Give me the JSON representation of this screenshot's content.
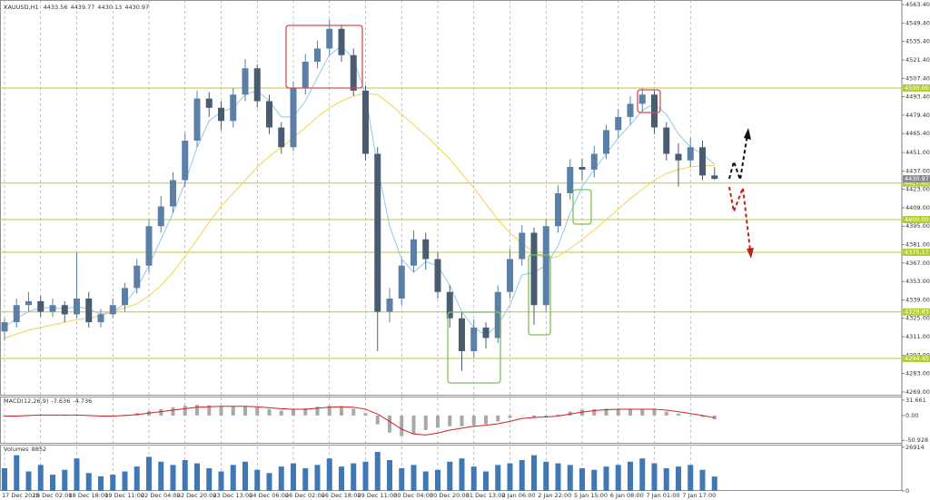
{
  "chart_data": [
    {
      "type": "candlestick",
      "title": "XAUUSD,H1",
      "categories": [
        "17 Dec 2025",
        null,
        null,
        "18 Dec 02:00",
        null,
        null,
        "18 Dec 18:00",
        null,
        null,
        "19 Dec 11:00",
        null,
        null,
        "22 Dec 04:00",
        null,
        null,
        "22 Dec 20:00",
        null,
        null,
        "23 Dec 13:00",
        null,
        null,
        "24 Dec 06:00",
        null,
        null,
        "26 Dec 02:00",
        null,
        null,
        "26 Dec 18:00",
        null,
        null,
        "29 Dec 11:00",
        null,
        null,
        "30 Dec 04:00",
        null,
        null,
        "30 Dec 20:00",
        null,
        null,
        "31 Dec 13:00",
        null,
        null,
        "2 Jan 06:00",
        null,
        null,
        "2 Jan 22:00",
        null,
        null,
        "5 Jan 15:00",
        null,
        null,
        "6 Jan 08:00",
        null,
        null,
        "7 Jan 01:00",
        null,
        null,
        "7 Jan 17:00",
        null,
        null
      ],
      "open": [
        4315,
        4322,
        4335,
        4338,
        4330,
        4335,
        4328,
        4340,
        4322,
        4328,
        4335,
        4348,
        4365,
        4395,
        4410,
        4430,
        4460,
        4492,
        4485,
        4475,
        4495,
        4515,
        4490,
        4470,
        4455,
        4500,
        4520,
        4530,
        4545,
        4525,
        4498,
        4450,
        4330,
        4340,
        4365,
        4385,
        4370,
        4345,
        4325,
        4300,
        4318,
        4310,
        4345,
        4370,
        4390,
        4335,
        4395,
        4420,
        4440,
        4438,
        4450,
        4468,
        4478,
        4488,
        4495,
        4470,
        4450,
        4445,
        4455,
        4433.56
      ],
      "high": [
        4325,
        4340,
        4345,
        4342,
        4340,
        4338,
        4375,
        4345,
        4332,
        4340,
        4352,
        4370,
        4400,
        4418,
        4436,
        4466,
        4498,
        4497,
        4490,
        4500,
        4522,
        4518,
        4495,
        4474,
        4505,
        4526,
        4536,
        4552,
        4548,
        4530,
        4502,
        4455,
        4348,
        4370,
        4392,
        4390,
        4375,
        4350,
        4330,
        4324,
        4322,
        4350,
        4378,
        4396,
        4394,
        4400,
        4426,
        4446,
        4446,
        4456,
        4472,
        4484,
        4494,
        4500,
        4498,
        4474,
        4458,
        4462,
        4460,
        4439.77
      ],
      "low": [
        4308,
        4318,
        4330,
        4326,
        4326,
        4322,
        4325,
        4318,
        4318,
        4325,
        4330,
        4344,
        4360,
        4390,
        4405,
        4425,
        4455,
        4478,
        4468,
        4470,
        4490,
        4485,
        4465,
        4450,
        4452,
        4495,
        4515,
        4525,
        4520,
        4494,
        4445,
        4300,
        4322,
        4335,
        4360,
        4362,
        4340,
        4318,
        4285,
        4295,
        4302,
        4306,
        4340,
        4365,
        4320,
        4330,
        4390,
        4415,
        4430,
        4432,
        4446,
        4462,
        4472,
        4482,
        4465,
        4445,
        4425,
        4440,
        4430,
        4430.13
      ],
      "close": [
        4322,
        4335,
        4338,
        4330,
        4335,
        4328,
        4340,
        4322,
        4328,
        4335,
        4348,
        4365,
        4395,
        4410,
        4430,
        4460,
        4492,
        4485,
        4475,
        4495,
        4515,
        4490,
        4470,
        4455,
        4500,
        4520,
        4530,
        4545,
        4525,
        4498,
        4450,
        4330,
        4340,
        4365,
        4385,
        4370,
        4345,
        4325,
        4300,
        4318,
        4310,
        4345,
        4370,
        4390,
        4335,
        4395,
        4420,
        4440,
        4438,
        4450,
        4468,
        4478,
        4488,
        4495,
        4470,
        4450,
        4445,
        4455,
        4433.56,
        4430.97
      ],
      "up_color": "#5b7fa6",
      "down_color": "#4a5c70",
      "moving_averages": [
        {
          "color": "#8ec9e8",
          "values": [
            4318,
            4325,
            4330,
            4333,
            4333,
            4332,
            4334,
            4332,
            4328,
            4330,
            4336,
            4348,
            4365,
            4385,
            4405,
            4428,
            4455,
            4475,
            4482,
            4485,
            4495,
            4498,
            4490,
            4478,
            4478,
            4490,
            4508,
            4525,
            4532,
            4522,
            4495,
            4440,
            4395,
            4370,
            4360,
            4368,
            4365,
            4350,
            4330,
            4318,
            4312,
            4320,
            4335,
            4358,
            4360,
            4365,
            4380,
            4405,
            4425,
            4438,
            4450,
            4462,
            4472,
            4483,
            4488,
            4480,
            4465,
            4455,
            4450,
            4442
          ]
        },
        {
          "color": "#f3d34a",
          "values": [
            4310,
            4313,
            4316,
            4318,
            4320,
            4322,
            4324,
            4325,
            4327,
            4330,
            4333,
            4336,
            4342,
            4350,
            4360,
            4372,
            4385,
            4398,
            4410,
            4420,
            4430,
            4440,
            4448,
            4455,
            4462,
            4470,
            4478,
            4485,
            4490,
            4494,
            4496,
            4495,
            4488,
            4480,
            4472,
            4464,
            4455,
            4446,
            4435,
            4424,
            4412,
            4400,
            4390,
            4382,
            4375,
            4370,
            4372,
            4378,
            4385,
            4392,
            4400,
            4408,
            4416,
            4423,
            4430,
            4435,
            4438,
            4440,
            4441,
            4441
          ]
        }
      ],
      "levels": [
        {
          "value": 4500,
          "label": "4500.00"
        },
        {
          "value": 4427.8,
          "label": "4427.80"
        },
        {
          "value": 4400,
          "label": "4400.00"
        },
        {
          "value": 4375.17,
          "label": "4375.17"
        },
        {
          "value": 4329.83,
          "label": "4329.83"
        },
        {
          "value": 4294.45,
          "label": "4294.45"
        }
      ],
      "level_color": "#b4cc3a",
      "ylim": [
        4266.2,
        4566.9
      ],
      "yticks": [
        {
          "value": 4563.4,
          "label": "4563.40"
        },
        {
          "value": 4549.4,
          "label": "4549.40"
        },
        {
          "value": 4535.4,
          "label": "4535.40"
        },
        {
          "value": 4521.4,
          "label": "4521.40"
        },
        {
          "value": 4507.4,
          "label": "4507.40"
        },
        {
          "value": 4493.4,
          "label": "4493.40"
        },
        {
          "value": 4479.4,
          "label": "4479.40"
        },
        {
          "value": 4465.4,
          "label": "4465.40"
        },
        {
          "value": 4451,
          "label": "4451.00"
        },
        {
          "value": 4437,
          "label": "4437.00"
        },
        {
          "value": 4423,
          "label": "4423.00"
        },
        {
          "value": 4409,
          "label": "4409.00"
        },
        {
          "value": 4395,
          "label": "4395.00"
        },
        {
          "value": 4381,
          "label": "4381.00"
        },
        {
          "value": 4367,
          "label": "4367.00"
        },
        {
          "value": 4353,
          "label": "4353.00"
        },
        {
          "value": 4339,
          "label": "4339.00"
        },
        {
          "value": 4325,
          "label": "4325.00"
        },
        {
          "value": 4311,
          "label": "4311.00"
        },
        {
          "value": 4297,
          "label": "4297.00"
        },
        {
          "value": 4283,
          "label": "4283.00"
        },
        {
          "value": 4269,
          "label": "4269.00"
        }
      ]
    },
    {
      "type": "macd",
      "title": "MACD(12,26,9)",
      "values": [
        -2,
        -1,
        1,
        2,
        1,
        0,
        1,
        -1,
        -2,
        0,
        2,
        5,
        9,
        13,
        17,
        20,
        22,
        21,
        19,
        18,
        19,
        17,
        13,
        10,
        12,
        15,
        18,
        20,
        19,
        14,
        5,
        -18,
        -35,
        -42,
        -38,
        -30,
        -25,
        -22,
        -22,
        -20,
        -18,
        -12,
        -5,
        0,
        -5,
        -4,
        2,
        8,
        12,
        13,
        14,
        14,
        14,
        13,
        12,
        8,
        4,
        0,
        -3,
        -7.636
      ],
      "signal": [
        -1,
        -1,
        0,
        1,
        1,
        1,
        1,
        0,
        -1,
        -1,
        0,
        2,
        5,
        8,
        11,
        14,
        17,
        18,
        19,
        19,
        19,
        18,
        16,
        14,
        13,
        13,
        15,
        17,
        18,
        17,
        13,
        3,
        -12,
        -28,
        -38,
        -40,
        -36,
        -30,
        -26,
        -22,
        -20,
        -17,
        -12,
        -6,
        -4,
        -3,
        -1,
        3,
        7,
        10,
        12,
        13,
        13,
        13,
        13,
        11,
        8,
        4,
        0,
        -4.736
      ],
      "color": "#a8a8a8",
      "signal_color": "#d22020",
      "ylim": [
        -58,
        39
      ],
      "yticks": [
        31.661,
        {
          "value": 0,
          "label": "0.00"
        },
        -50.928
      ]
    },
    {
      "type": "volume",
      "title": "Volumes",
      "values": [
        14000,
        22000,
        12000,
        16000,
        10000,
        13000,
        20000,
        11000,
        9000,
        10000,
        12000,
        15000,
        21000,
        18000,
        16000,
        19000,
        17000,
        14000,
        12000,
        16000,
        18000,
        13000,
        11000,
        15000,
        17000,
        14000,
        16000,
        20000,
        15000,
        17000,
        18000,
        24000,
        19000,
        14000,
        16000,
        12000,
        13000,
        18000,
        20000,
        15000,
        12000,
        16000,
        17000,
        19000,
        22000,
        18000,
        17000,
        16000,
        14000,
        13000,
        15000,
        16000,
        18000,
        20000,
        17000,
        14000,
        15000,
        16000,
        13000,
        8852
      ],
      "color": "#3f78b4",
      "ylim": [
        0,
        28500
      ],
      "yticks": [
        26914,
        0
      ]
    }
  ]
}
